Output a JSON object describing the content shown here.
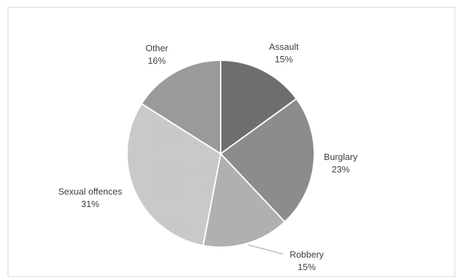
{
  "chart_data": {
    "type": "pie",
    "title": "",
    "slices": [
      {
        "label": "Assault",
        "value": 15,
        "value_label": "15%",
        "color": "#6e6e6e"
      },
      {
        "label": "Burglary",
        "value": 23,
        "value_label": "23%",
        "color": "#8c8c8c"
      },
      {
        "label": "Robbery",
        "value": 15,
        "value_label": "15%",
        "color": "#b0b0b0"
      },
      {
        "label": "Sexual offences",
        "value": 31,
        "value_label": "31%",
        "color": "#c8c8c8"
      },
      {
        "label": "Other",
        "value": 16,
        "value_label": "16%",
        "color": "#9a9a9a"
      }
    ],
    "start_angle_deg": 0,
    "direction": "clockwise",
    "legend": "none"
  }
}
